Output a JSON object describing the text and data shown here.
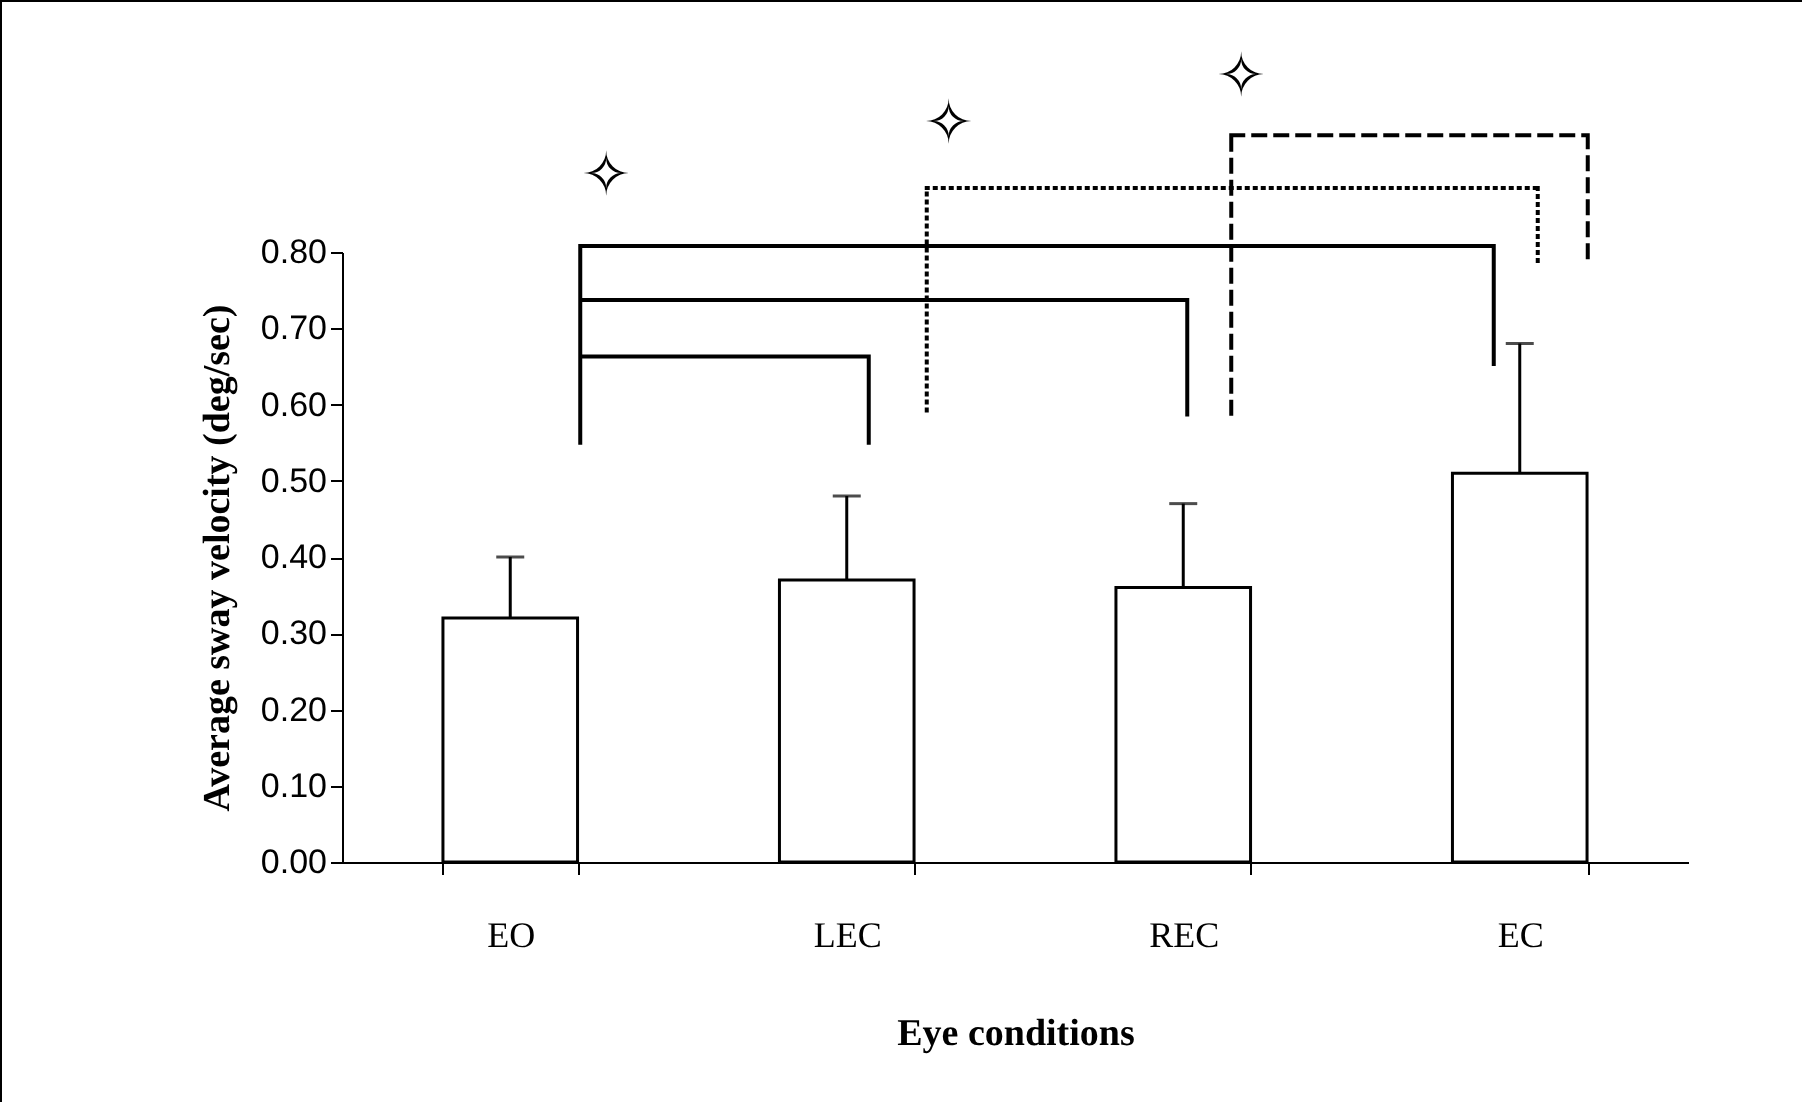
{
  "chart_data": {
    "type": "bar",
    "xlabel": "Eye conditions",
    "ylabel": "Average sway velocity (deg/sec)",
    "categories": [
      "EO",
      "LEC",
      "REC",
      "EC"
    ],
    "values": [
      0.32,
      0.37,
      0.36,
      0.51
    ],
    "errors": [
      [
        0.32,
        0.4
      ],
      [
        0.37,
        0.48
      ],
      [
        0.36,
        0.47
      ],
      [
        0.51,
        0.68
      ]
    ],
    "color": "#ffffff",
    "ylim": [
      0,
      0.8
    ],
    "yticks": [
      {
        "value": 0,
        "label": "0.00"
      },
      {
        "value": 0.1,
        "label": "0.10"
      },
      {
        "value": 0.2,
        "label": "0.20"
      },
      {
        "value": 0.3,
        "label": "0.30"
      },
      {
        "value": 0.4,
        "label": "0.40"
      },
      {
        "value": 0.5,
        "label": "0.50"
      },
      {
        "value": 0.6,
        "label": "0.60"
      },
      {
        "value": 0.7,
        "label": "0.70"
      },
      {
        "value": 0.8,
        "label": "0.80"
      }
    ],
    "grid": false,
    "annotations": [
      "✧",
      "✧",
      "✧"
    ]
  }
}
